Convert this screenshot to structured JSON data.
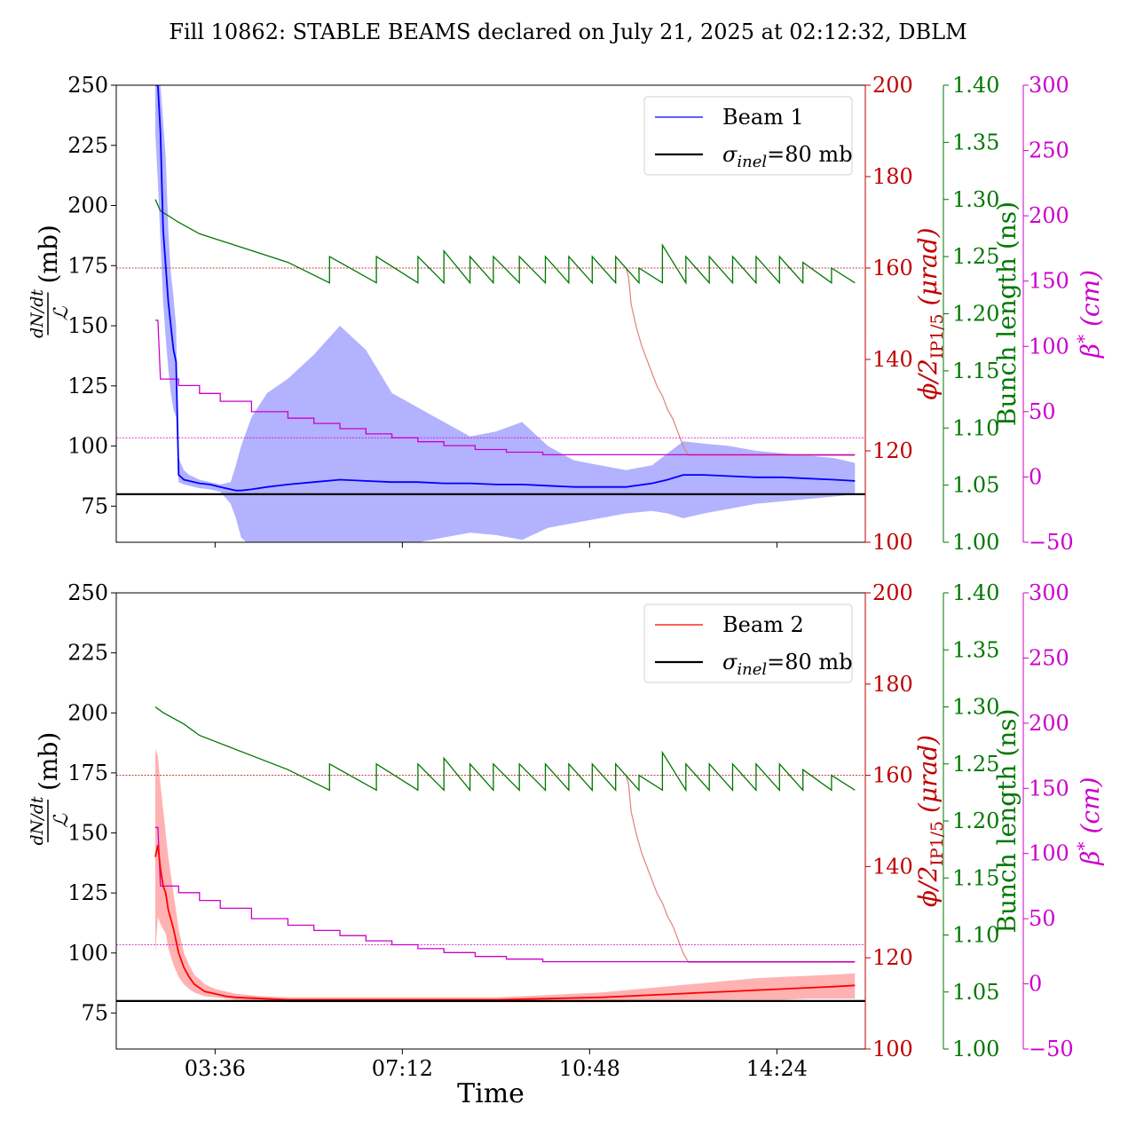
{
  "figure_title": "Fill 10862: STABLE BEAMS declared on July 21, 2025 at 02:12:32, DBLM",
  "xlabel": "Time",
  "colors": {
    "beam1": "#0000ff",
    "beam1_band": "#aaaaff",
    "beam2": "#ff0000",
    "beam2_band": "#ffaaaa",
    "crossing": "#c00000",
    "crossing_light": "#e08080",
    "bunch": "#007700",
    "beta": "#cc00cc",
    "reference": "#000000"
  },
  "chart_data": [
    {
      "type": "line",
      "panel": "top",
      "ylabel_main": "(mb)",
      "ylabel_num": "dN/dt",
      "ylabel_den": "ℒ",
      "ylim": [
        60,
        250
      ],
      "yticks": [
        "250",
        "225",
        "200",
        "175",
        "150",
        "125",
        "100",
        "75"
      ],
      "xlim": [
        1.7,
        16.1
      ],
      "xticks": [
        {
          "value": 3.6,
          "label": "03:36"
        },
        {
          "value": 7.2,
          "label": "07:12"
        },
        {
          "value": 10.8,
          "label": "10:48"
        },
        {
          "value": 14.4,
          "label": "14:24"
        }
      ],
      "show_xtick_labels": false,
      "legend": {
        "placement": "top-right",
        "entries": [
          {
            "label": "Beam 1",
            "kind": "beam"
          },
          {
            "label_main": "σ",
            "label_sub": "inel",
            "label_rest": "=80 mb",
            "kind": "reference"
          }
        ]
      },
      "reference_mb": 80,
      "beam": {
        "name": "Beam 1",
        "x": [
          2.45,
          2.5,
          2.55,
          2.6,
          2.65,
          2.7,
          2.75,
          2.8,
          2.85,
          2.9,
          3.0,
          3.1,
          3.2,
          3.3,
          3.5,
          3.7,
          3.9,
          4.0,
          4.1,
          4.3,
          4.6,
          5.0,
          5.5,
          6.0,
          6.5,
          7.0,
          7.5,
          8.0,
          8.5,
          9.0,
          9.5,
          10.0,
          10.5,
          11.0,
          11.5,
          12.0,
          12.3,
          12.6,
          13.0,
          13.5,
          14.0,
          14.5,
          15.0,
          15.5,
          15.9
        ],
        "mean": [
          250,
          250,
          230,
          190,
          175,
          160,
          150,
          140,
          135,
          88,
          86,
          85.5,
          85,
          84.5,
          84,
          83,
          82,
          81.5,
          81.5,
          82,
          83,
          84,
          85,
          86,
          85.5,
          85,
          85,
          84.5,
          84.5,
          84,
          84,
          83.5,
          83,
          83,
          83,
          84.5,
          86,
          88,
          88,
          87.5,
          87,
          87,
          86.5,
          86,
          85.5
        ],
        "upper": [
          250,
          250,
          250,
          235,
          220,
          190,
          172,
          162,
          150,
          95,
          90,
          88,
          87,
          86,
          85,
          84,
          85,
          92,
          100,
          112,
          122,
          128,
          138,
          150,
          140,
          122,
          116,
          110,
          104,
          106,
          110,
          100,
          94,
          92,
          90,
          92,
          97,
          102,
          101,
          100,
          98,
          97,
          96,
          95,
          93
        ],
        "lower": [
          230,
          210,
          185,
          160,
          145,
          132,
          122,
          115,
          112,
          85,
          84,
          83.5,
          83,
          82.5,
          82,
          81,
          76,
          70,
          62,
          58,
          55,
          52,
          50,
          48,
          52,
          57,
          60,
          62,
          64,
          63,
          61,
          66,
          68,
          70,
          72,
          73,
          72,
          70,
          72,
          74,
          76,
          77,
          78,
          79,
          80
        ]
      },
      "crossing_angle": {
        "label_pre": "ϕ/2",
        "label_sub": "IP1/5",
        "label_post": " (μrad)",
        "ylim": [
          100,
          200
        ],
        "ticks": [
          "200",
          "180",
          "160",
          "140",
          "120",
          "100"
        ],
        "threshold": 160,
        "x": [
          11.5,
          11.55,
          11.6,
          11.7,
          11.8,
          11.9,
          12.0,
          12.1,
          12.2,
          12.3,
          12.4,
          12.5,
          12.6,
          12.7,
          15.9
        ],
        "y": [
          160,
          158,
          152,
          147,
          143,
          140,
          137,
          134,
          132,
          129,
          127,
          124,
          121,
          119,
          119
        ]
      },
      "bunch_length": {
        "label": "Bunch length (ns)",
        "ylim": [
          1.0,
          1.4
        ],
        "ticks": [
          "1.40",
          "1.35",
          "1.30",
          "1.25",
          "1.20",
          "1.15",
          "1.10",
          "1.05",
          "1.00"
        ],
        "x": [
          2.45,
          2.55,
          2.9,
          3.3,
          5.0,
          5.8,
          5.8,
          6.7,
          6.7,
          7.5,
          7.5,
          8.0,
          8.0,
          8.5,
          8.5,
          8.95,
          8.95,
          9.45,
          9.45,
          9.95,
          9.95,
          10.4,
          10.4,
          10.85,
          10.85,
          11.3,
          11.3,
          11.75,
          11.75,
          12.2,
          12.2,
          12.65,
          12.65,
          13.1,
          13.1,
          13.55,
          13.55,
          14.0,
          14.0,
          14.45,
          14.45,
          14.9,
          14.9,
          15.45,
          15.45,
          15.9
        ],
        "y": [
          1.3,
          1.29,
          1.28,
          1.27,
          1.245,
          1.227,
          1.25,
          1.227,
          1.25,
          1.227,
          1.25,
          1.227,
          1.255,
          1.227,
          1.25,
          1.227,
          1.25,
          1.227,
          1.25,
          1.227,
          1.25,
          1.227,
          1.25,
          1.227,
          1.25,
          1.227,
          1.25,
          1.227,
          1.24,
          1.227,
          1.26,
          1.227,
          1.25,
          1.227,
          1.25,
          1.227,
          1.25,
          1.227,
          1.25,
          1.227,
          1.25,
          1.227,
          1.245,
          1.227,
          1.24,
          1.227
        ],
        "threshold_note": ""
      },
      "beta_star": {
        "label_pre": "β",
        "label_sup": "*",
        "label_post": " (cm)",
        "ylim": [
          -50,
          300
        ],
        "ticks": [
          "300",
          "250",
          "200",
          "150",
          "100",
          "50",
          "0",
          "−50"
        ],
        "threshold": 30,
        "x": [
          2.45,
          2.5,
          2.55,
          2.9,
          2.9,
          3.3,
          3.3,
          3.7,
          3.7,
          4.3,
          4.3,
          5.0,
          5.0,
          5.5,
          5.5,
          6.0,
          6.0,
          6.5,
          6.5,
          7.0,
          7.0,
          7.5,
          7.5,
          8.0,
          8.0,
          8.6,
          8.6,
          9.2,
          9.2,
          9.9,
          9.9,
          15.9
        ],
        "y": [
          120,
          120,
          75,
          75,
          70,
          70,
          64,
          64,
          58,
          58,
          50,
          50,
          45,
          45,
          41,
          41,
          37,
          37,
          33,
          33,
          30,
          30,
          27,
          27,
          24,
          24,
          21,
          21,
          19,
          19,
          17,
          17
        ]
      }
    },
    {
      "type": "line",
      "panel": "bottom",
      "ylabel_main": "(mb)",
      "ylabel_num": "dN/dt",
      "ylabel_den": "ℒ",
      "ylim": [
        60,
        250
      ],
      "yticks": [
        "250",
        "225",
        "200",
        "175",
        "150",
        "125",
        "100",
        "75"
      ],
      "xlim": [
        1.7,
        16.1
      ],
      "xticks": [
        {
          "value": 3.6,
          "label": "03:36"
        },
        {
          "value": 7.2,
          "label": "07:12"
        },
        {
          "value": 10.8,
          "label": "10:48"
        },
        {
          "value": 14.4,
          "label": "14:24"
        }
      ],
      "show_xtick_labels": true,
      "legend": {
        "placement": "top-right",
        "entries": [
          {
            "label": "Beam 2",
            "kind": "beam"
          },
          {
            "label_main": "σ",
            "label_sub": "inel",
            "label_rest": "=80 mb",
            "kind": "reference"
          }
        ]
      },
      "reference_mb": 80,
      "beam": {
        "name": "Beam 2",
        "x": [
          2.45,
          2.5,
          2.55,
          2.6,
          2.65,
          2.7,
          2.8,
          2.9,
          3.0,
          3.1,
          3.2,
          3.4,
          3.6,
          3.8,
          4.0,
          4.5,
          5.0,
          6.0,
          7.0,
          8.0,
          9.0,
          10.0,
          11.0,
          11.5,
          12.0,
          12.5,
          13.0,
          13.5,
          14.0,
          14.5,
          15.0,
          15.5,
          15.9
        ],
        "mean": [
          140,
          145,
          135,
          128,
          125,
          118,
          110,
          100,
          94,
          90,
          87,
          84,
          83,
          82,
          81.5,
          81,
          80.5,
          80.5,
          80.5,
          80.5,
          80.5,
          81,
          81.5,
          82,
          82.5,
          83,
          83.5,
          84,
          84.5,
          85,
          85.5,
          86,
          86.5
        ],
        "upper": [
          185,
          182,
          170,
          160,
          150,
          140,
          125,
          110,
          100,
          95,
          91,
          87,
          85,
          84,
          83,
          82,
          81.5,
          81.5,
          81.5,
          81.5,
          81.5,
          82.5,
          83.5,
          84.5,
          85.5,
          86.5,
          87.5,
          88.5,
          89.5,
          90,
          90.5,
          91,
          91.5
        ],
        "lower": [
          100,
          115,
          112,
          110,
          108,
          102,
          95,
          90,
          87,
          85,
          83.5,
          82,
          81.5,
          81,
          80.5,
          80,
          79.5,
          79.5,
          79.5,
          79.5,
          79.5,
          79.5,
          79.5,
          79.5,
          80,
          80,
          80,
          80.5,
          80.5,
          80.5,
          81,
          81,
          81
        ]
      },
      "crossing_angle": {
        "label_pre": "ϕ/2",
        "label_sub": "IP1/5",
        "label_post": " (μrad)",
        "ylim": [
          100,
          200
        ],
        "ticks": [
          "200",
          "180",
          "160",
          "140",
          "120",
          "100"
        ],
        "threshold": 160,
        "x": [
          11.5,
          11.55,
          11.6,
          11.7,
          11.8,
          11.9,
          12.0,
          12.1,
          12.2,
          12.3,
          12.4,
          12.5,
          12.6,
          12.7,
          15.9
        ],
        "y": [
          160,
          158,
          152,
          147,
          143,
          140,
          137,
          134,
          132,
          129,
          127,
          124,
          121,
          119,
          119
        ]
      },
      "bunch_length": {
        "label": "Bunch length (ns)",
        "ylim": [
          1.0,
          1.4
        ],
        "ticks": [
          "1.40",
          "1.35",
          "1.30",
          "1.25",
          "1.20",
          "1.15",
          "1.10",
          "1.05",
          "1.00"
        ],
        "x": [
          2.45,
          2.6,
          3.0,
          3.3,
          5.0,
          5.8,
          5.8,
          6.7,
          6.7,
          7.5,
          7.5,
          8.0,
          8.0,
          8.5,
          8.5,
          8.95,
          8.95,
          9.45,
          9.45,
          9.95,
          9.95,
          10.4,
          10.4,
          10.85,
          10.85,
          11.3,
          11.3,
          11.75,
          11.75,
          12.2,
          12.2,
          12.65,
          12.65,
          13.1,
          13.1,
          13.55,
          13.55,
          14.0,
          14.0,
          14.45,
          14.45,
          14.9,
          14.9,
          15.45,
          15.45,
          15.9
        ],
        "y": [
          1.3,
          1.295,
          1.285,
          1.275,
          1.245,
          1.227,
          1.25,
          1.227,
          1.25,
          1.227,
          1.25,
          1.227,
          1.255,
          1.227,
          1.25,
          1.227,
          1.25,
          1.227,
          1.25,
          1.227,
          1.25,
          1.227,
          1.25,
          1.227,
          1.25,
          1.227,
          1.25,
          1.227,
          1.24,
          1.227,
          1.26,
          1.227,
          1.25,
          1.227,
          1.25,
          1.227,
          1.25,
          1.227,
          1.25,
          1.227,
          1.25,
          1.227,
          1.245,
          1.227,
          1.24,
          1.227
        ],
        "threshold_note": ""
      },
      "beta_star": {
        "label_pre": "β",
        "label_sup": "*",
        "label_post": " (cm)",
        "ylim": [
          -50,
          300
        ],
        "ticks": [
          "300",
          "250",
          "200",
          "150",
          "100",
          "50",
          "0",
          "−50"
        ],
        "threshold": 30,
        "x": [
          2.45,
          2.5,
          2.55,
          2.9,
          2.9,
          3.3,
          3.3,
          3.7,
          3.7,
          4.3,
          4.3,
          5.0,
          5.0,
          5.5,
          5.5,
          6.0,
          6.0,
          6.5,
          6.5,
          7.0,
          7.0,
          7.5,
          7.5,
          8.0,
          8.0,
          8.6,
          8.6,
          9.2,
          9.2,
          9.9,
          9.9,
          15.9
        ],
        "y": [
          120,
          120,
          75,
          75,
          70,
          70,
          64,
          64,
          58,
          58,
          50,
          50,
          45,
          45,
          41,
          41,
          37,
          37,
          33,
          33,
          30,
          30,
          27,
          27,
          24,
          24,
          21,
          21,
          19,
          19,
          17,
          17
        ]
      }
    }
  ]
}
